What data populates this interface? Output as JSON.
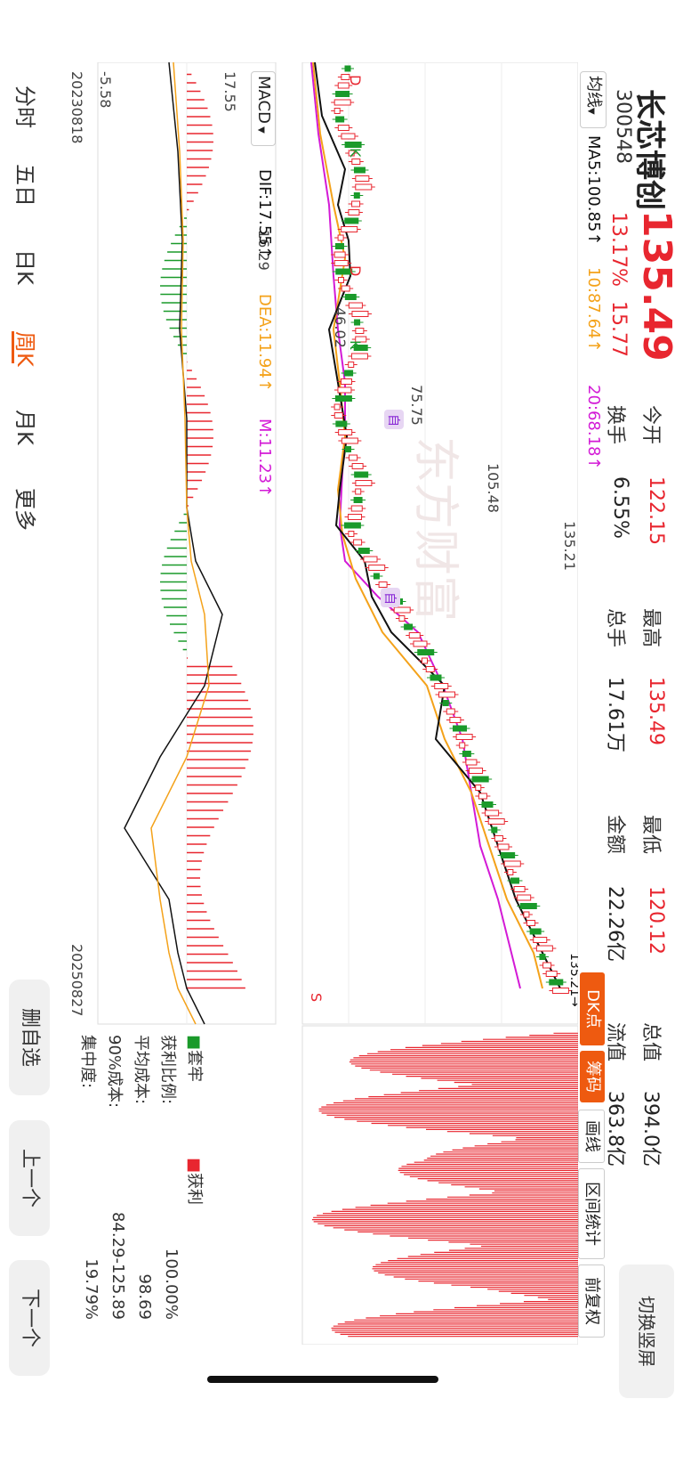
{
  "stock": {
    "name": "长芯博创",
    "code": "300548",
    "price": "135.49",
    "change_pct": "13.17%",
    "change_abs": "15.77"
  },
  "quote": {
    "open_label": "今开",
    "open_value": "122.15",
    "turnover_label": "换手",
    "turnover_value": "6.55%",
    "high_label": "最高",
    "high_value": "135.49",
    "volume_label": "总手",
    "volume_value": "17.61万",
    "low_label": "最低",
    "low_value": "120.12",
    "amount_label": "金额",
    "amount_value": "22.26亿",
    "mktcap_label": "总值",
    "mktcap_value": "394.0亿",
    "float_label": "流值",
    "float_value": "363.8亿"
  },
  "switch_button": "切换竖屏",
  "indicator_bar": {
    "selector": "均线",
    "ma5": "MA5:100.85↑",
    "ma10": "10:87.64↑",
    "ma20": "20:68.18↑"
  },
  "price_axis": [
    "135.21",
    "105.48",
    "75.75",
    "46.02",
    "16.29"
  ],
  "price_tag": "135.21→",
  "macd_bar": {
    "selector": "MACD",
    "dif": "DIF:17.55↑",
    "dea": "DEA:11.94↑",
    "m": "M:11.23↑"
  },
  "macd_axis": [
    "17.55",
    "-5.58"
  ],
  "date_start": "20230818",
  "date_end": "20250827",
  "tool_buttons": {
    "dk": "DK点",
    "chip": "筹码",
    "draw": "画线",
    "range": "区间统计",
    "restore": "前复权"
  },
  "chip_legend": {
    "loss": "套牢",
    "profit": "获利"
  },
  "chip_stats": [
    {
      "label": "获利比例:",
      "value": "100.00%"
    },
    {
      "label": "平均成本:",
      "value": "98.69"
    },
    {
      "label": "90%成本:",
      "value": "84.29-125.89"
    },
    {
      "label": "集中度:",
      "value": "19.79%"
    }
  ],
  "period_tabs": [
    "分时",
    "五日",
    "日K",
    "周K",
    "月K",
    "更多"
  ],
  "active_tab": "周K",
  "bottom_buttons": {
    "delete": "删自选",
    "prev": "上一个",
    "next": "下一个"
  },
  "watermark": "东方财富",
  "signals": [
    "D",
    "K",
    "B",
    "S",
    "自"
  ],
  "colors": {
    "up": "#e8262f",
    "down": "#1a9a2a",
    "ma5": "#111111",
    "ma10": "#f4a21a",
    "ma20": "#d31ad6",
    "accent": "#ee5a10"
  }
}
